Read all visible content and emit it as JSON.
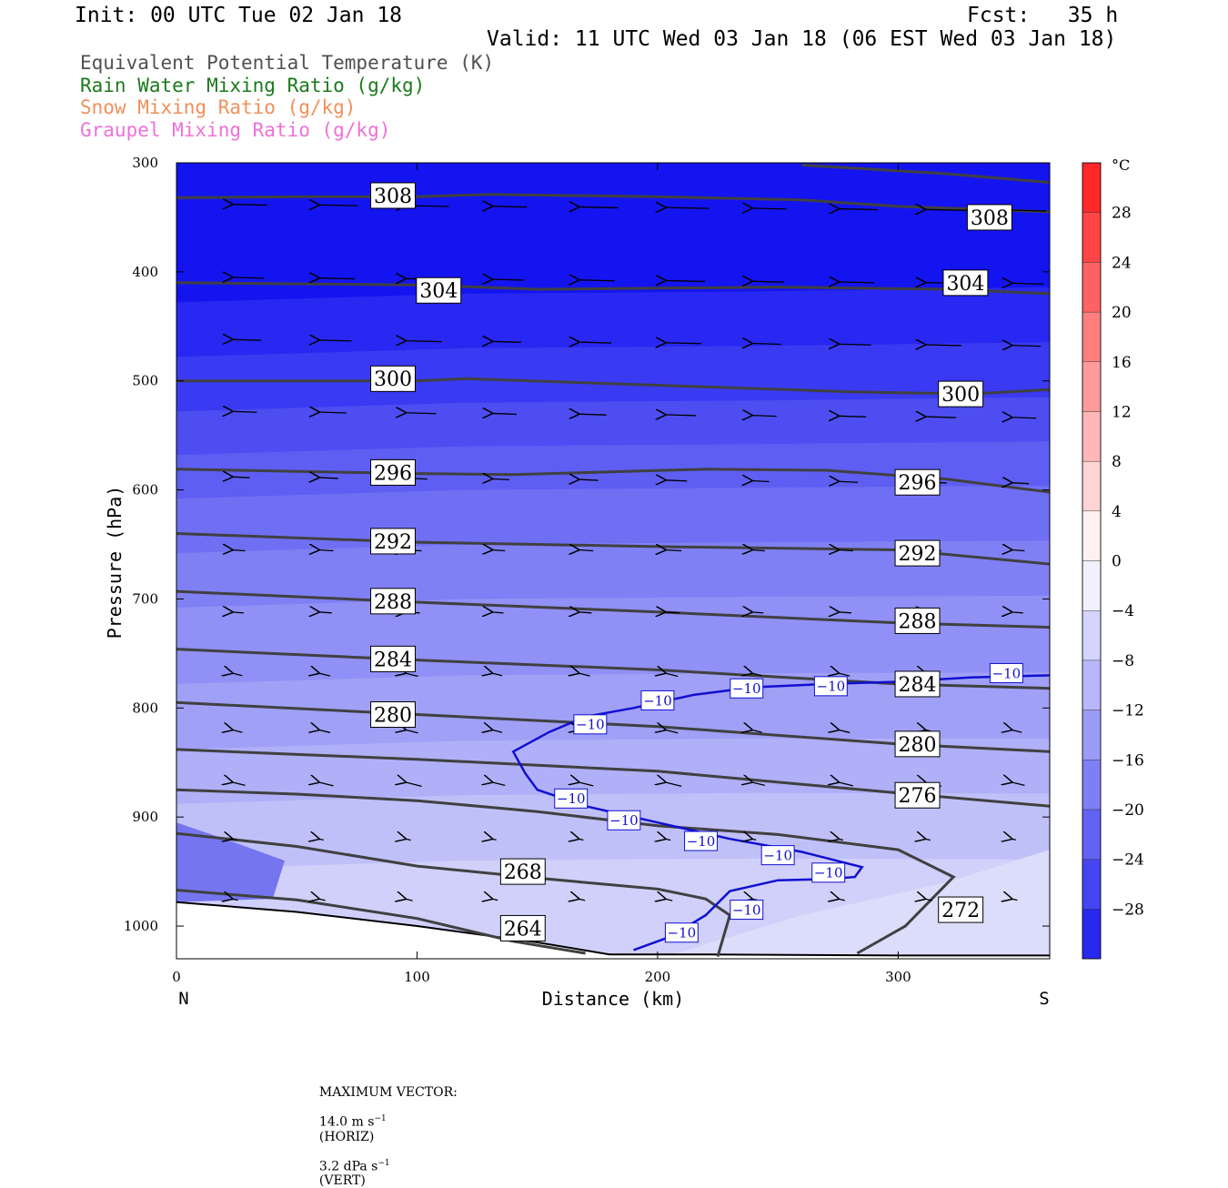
{
  "header": {
    "init": "Init: 00 UTC Tue 02 Jan 18",
    "fcst": "Fcst:   35 h",
    "valid": "Valid: 11 UTC Wed 03 Jan 18 (06 EST Wed 03 Jan 18)"
  },
  "fields": [
    {
      "label": "Equivalent Potential Temperature (K)",
      "color": "#505050"
    },
    {
      "label": "Rain Water Mixing Ratio (g/kg)",
      "color": "#1a7a1a"
    },
    {
      "label": "Snow Mixing Ratio (g/kg)",
      "color": "#f0905a"
    },
    {
      "label": "Graupel Mixing Ratio (g/kg)",
      "color": "#f070d8"
    }
  ],
  "colorbar": {
    "unit": "°C",
    "tick_labels": [
      "28",
      "24",
      "20",
      "16",
      "12",
      "8",
      "4",
      "0",
      "−4",
      "−8",
      "−12",
      "−16",
      "−20",
      "−24",
      "−28"
    ]
  },
  "footer": {
    "prefix": "MAXIMUM VECTOR:",
    "horiz_value": "14.0 m s",
    "horiz_exp": "−1",
    "horiz_tag": "(HORIZ)",
    "vert_value": "3.2 dPa s",
    "vert_exp": "−1",
    "vert_tag": "(VERT)"
  },
  "chart_data": {
    "type": "cross-section contour",
    "xlabel": "Distance (km)",
    "ylabel": "Pressure (hPa)",
    "xlim": [
      0,
      363
    ],
    "ylim": [
      300,
      1030
    ],
    "y_scale": "linear, inverted",
    "x_ticks": [
      0,
      100,
      200,
      300
    ],
    "y_ticks": [
      300,
      400,
      500,
      600,
      700,
      800,
      900,
      1000
    ],
    "x_end_labels": {
      "left": "N",
      "right": "S"
    },
    "temperature_shading": {
      "unit": "°C",
      "levels": [
        -28,
        -24,
        -20,
        -16,
        -12,
        -8,
        -4,
        0,
        4,
        8,
        12,
        16,
        20,
        24,
        28
      ],
      "top_color": "#ff1a1a",
      "bottom_color": "#1a1aee"
    },
    "theta_e_contours": [
      {
        "value": 308,
        "label": "308",
        "points": [
          [
            0,
            332
          ],
          [
            50,
            331
          ],
          [
            100,
            331
          ],
          [
            130,
            329
          ],
          [
            200,
            331
          ],
          [
            260,
            334
          ],
          [
            300,
            340
          ],
          [
            363,
            345
          ]
        ]
      },
      {
        "value": 304,
        "label": "304",
        "points": [
          [
            0,
            410
          ],
          [
            100,
            412
          ],
          [
            150,
            416
          ],
          [
            250,
            414
          ],
          [
            320,
            416
          ],
          [
            363,
            420
          ]
        ]
      },
      {
        "value": 300,
        "label": "300",
        "points": [
          [
            0,
            500
          ],
          [
            100,
            500
          ],
          [
            120,
            498
          ],
          [
            200,
            504
          ],
          [
            280,
            510
          ],
          [
            330,
            512
          ],
          [
            363,
            508
          ]
        ]
      },
      {
        "value": 296,
        "label": "296",
        "points": [
          [
            0,
            581
          ],
          [
            100,
            585
          ],
          [
            140,
            586
          ],
          [
            220,
            581
          ],
          [
            270,
            582
          ],
          [
            320,
            590
          ],
          [
            363,
            602
          ]
        ]
      },
      {
        "value": 292,
        "label": "292",
        "points": [
          [
            0,
            640
          ],
          [
            100,
            648
          ],
          [
            200,
            652
          ],
          [
            300,
            655
          ],
          [
            363,
            668
          ]
        ]
      },
      {
        "value": 288,
        "label": "288",
        "points": [
          [
            0,
            693
          ],
          [
            100,
            703
          ],
          [
            200,
            712
          ],
          [
            300,
            722
          ],
          [
            363,
            726
          ]
        ]
      },
      {
        "value": 284,
        "label": "284",
        "points": [
          [
            0,
            746
          ],
          [
            100,
            756
          ],
          [
            200,
            765
          ],
          [
            300,
            778
          ],
          [
            363,
            782
          ]
        ]
      },
      {
        "value": 280,
        "label": "280",
        "points": [
          [
            0,
            795
          ],
          [
            100,
            806
          ],
          [
            200,
            817
          ],
          [
            300,
            833
          ],
          [
            363,
            840
          ]
        ]
      },
      {
        "value": 276,
        "label": "276",
        "points": [
          [
            0,
            838
          ],
          [
            100,
            847
          ],
          [
            200,
            858
          ],
          [
            300,
            878
          ],
          [
            363,
            890
          ]
        ]
      },
      {
        "value": 272,
        "label": "272",
        "points": [
          [
            0,
            875
          ],
          [
            50,
            879
          ],
          [
            100,
            885
          ],
          [
            150,
            895
          ],
          [
            200,
            908
          ],
          [
            250,
            916
          ],
          [
            300,
            930
          ],
          [
            323,
            955
          ],
          [
            303,
            1000
          ],
          [
            283,
            1025
          ]
        ]
      },
      {
        "value": 268,
        "label": "268",
        "points": [
          [
            0,
            915
          ],
          [
            50,
            927
          ],
          [
            100,
            945
          ],
          [
            150,
            956
          ],
          [
            200,
            966
          ],
          [
            220,
            975
          ],
          [
            230,
            990
          ],
          [
            225,
            1028
          ]
        ]
      },
      {
        "value": 264,
        "label": "264",
        "points": [
          [
            0,
            967
          ],
          [
            50,
            976
          ],
          [
            100,
            993
          ],
          [
            140,
            1014
          ],
          [
            170,
            1025
          ]
        ]
      },
      {
        "value": 308,
        "label": "",
        "points": [
          [
            260,
            302
          ],
          [
            320,
            310
          ],
          [
            363,
            318
          ]
        ]
      }
    ],
    "temperature_contour": {
      "value": -10,
      "label": "−10",
      "points": [
        [
          363,
          770
        ],
        [
          330,
          772
        ],
        [
          300,
          776
        ],
        [
          270,
          778
        ],
        [
          240,
          781
        ],
        [
          215,
          788
        ],
        [
          190,
          800
        ],
        [
          170,
          808
        ],
        [
          155,
          822
        ],
        [
          140,
          840
        ],
        [
          145,
          860
        ],
        [
          150,
          875
        ],
        [
          170,
          890
        ],
        [
          200,
          905
        ],
        [
          230,
          920
        ],
        [
          260,
          932
        ],
        [
          285,
          946
        ],
        [
          282,
          955
        ],
        [
          270,
          957
        ],
        [
          250,
          958
        ],
        [
          230,
          968
        ],
        [
          220,
          990
        ],
        [
          205,
          1010
        ],
        [
          190,
          1022
        ]
      ]
    }
  }
}
